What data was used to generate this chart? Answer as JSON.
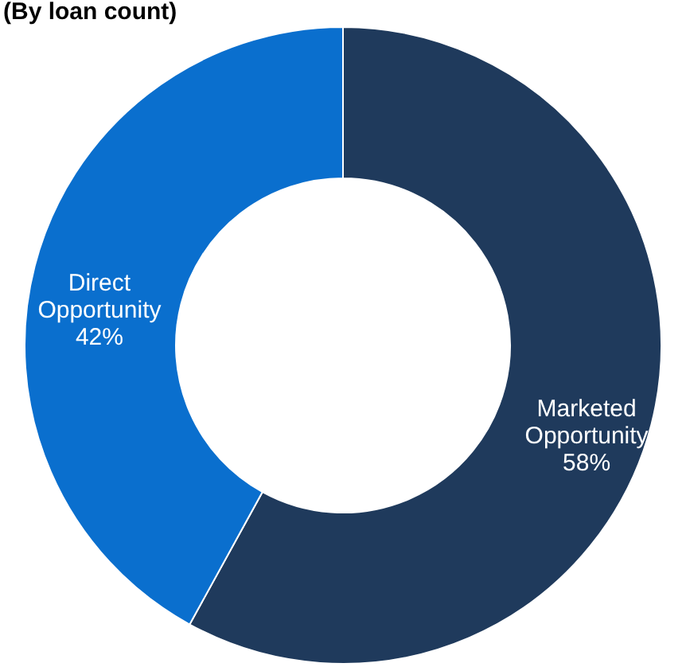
{
  "chart_data": {
    "type": "donut",
    "title": "(By loan count)",
    "categories": [
      "Marketed Opportunity",
      "Direct Opportunity"
    ],
    "values": [
      58,
      42
    ],
    "colors": [
      "#1f3a5c",
      "#0a6fce"
    ],
    "value_labels": [
      "58%",
      "42%"
    ],
    "legend": false
  }
}
